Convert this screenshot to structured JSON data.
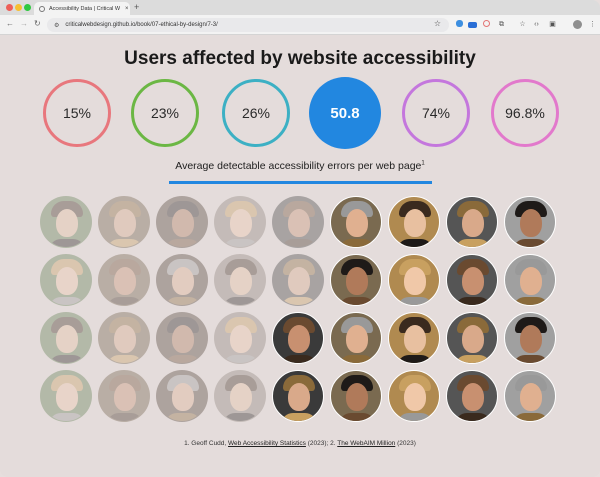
{
  "browser": {
    "tab_title": "Accessibility Data | Critical W",
    "url": "criticalwebdesign.github.io/book/07-ethical-by-design/7-3/",
    "new_tab_label": "+",
    "close_tab_label": "×",
    "icons": {
      "back": "←",
      "forward": "→",
      "reload": "↻",
      "site_info": "⚙",
      "bookmark": "☆",
      "extensions": [
        "ext-1",
        "ext-2",
        "ext-3",
        "puzzle",
        "bookmark-manager",
        "code",
        "split-screen"
      ],
      "menu": "⋮"
    }
  },
  "page": {
    "title": "Users affected by website accessibility",
    "stats": [
      {
        "value": "15%",
        "color": "#e8777d",
        "highlight": false
      },
      {
        "value": "23%",
        "color": "#6bb744",
        "highlight": false
      },
      {
        "value": "26%",
        "color": "#3cb0c4",
        "highlight": false
      },
      {
        "value": "50.8",
        "color": "#2287e0",
        "highlight": true
      },
      {
        "value": "74%",
        "color": "#c477dd",
        "highlight": false
      },
      {
        "value": "96.8%",
        "color": "#e279cc",
        "highlight": false
      }
    ],
    "caption": "Average detectable accessibility errors per web page",
    "caption_sup": "1",
    "accent_color": "#2287e0",
    "faces": {
      "rows": 4,
      "cols": 9,
      "dimmed_per_row": [
        5,
        5,
        4,
        4
      ]
    },
    "footnote": {
      "prefix": "1. Geoff Cudd, ",
      "link1": "Web Accessibility Statistics",
      "mid": " (2023); 2. ",
      "link2": "The WebAIM Million",
      "suffix": " (2023)"
    }
  }
}
